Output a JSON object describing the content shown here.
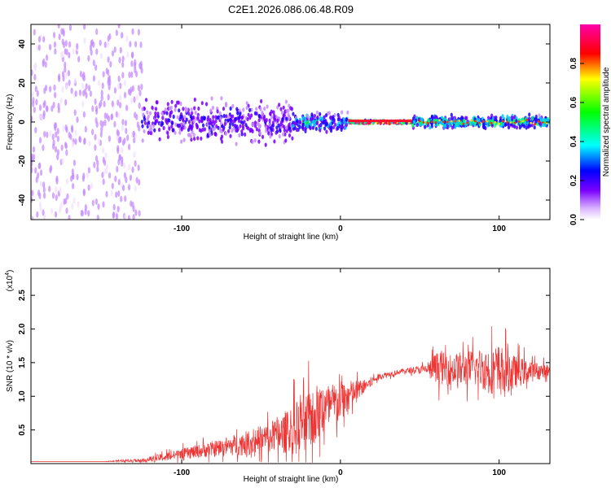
{
  "title": "C2E1.2026.086.06.48.R09",
  "chart_data": [
    {
      "type": "heatmap",
      "name": "spectrogram",
      "xlabel": "Height of straight line (km)",
      "ylabel": "Frequency (Hz)",
      "xlim": [
        -195,
        132
      ],
      "ylim": [
        -50,
        50
      ],
      "xticks": [
        -100,
        0,
        100
      ],
      "yticks": [
        -40,
        -20,
        0,
        20,
        40
      ],
      "colorbar": {
        "label": "Normalized spectral amplitude",
        "range": [
          0,
          1
        ],
        "ticks": [
          0.0,
          0.2,
          0.4,
          0.6,
          0.8
        ],
        "tick_labels": [
          "0.0",
          "0.2",
          "0.4",
          "0.6",
          "0.8"
        ],
        "colormap": [
          "#ffffff",
          "#7a00ff",
          "#0000ff",
          "#00ffff",
          "#00ff00",
          "#ffff00",
          "#ff0000",
          "#ff00aa"
        ]
      },
      "description_regions": [
        {
          "x_range": [
            -195,
            -125
          ],
          "freq_spread": 50,
          "level": 0.12
        },
        {
          "x_range": [
            -125,
            -30
          ],
          "freq_spread": 14,
          "level": 0.25
        },
        {
          "x_range": [
            -30,
            5
          ],
          "freq_spread": 6,
          "level": 0.4
        },
        {
          "x_range": [
            5,
            45
          ],
          "freq_spread": 1,
          "level": 0.9
        },
        {
          "x_range": [
            45,
            132
          ],
          "freq_spread": 4,
          "level": 0.5
        }
      ]
    },
    {
      "type": "line",
      "name": "snr",
      "xlabel": "Height of straight line (km)",
      "ylabel": "SNR (10 * v/v)",
      "y_multiplier_label": "(x10",
      "y_multiplier_exp": "4",
      "xlim": [
        -195,
        132
      ],
      "ylim": [
        0.0,
        2.9
      ],
      "xticks": [
        -100,
        0,
        100
      ],
      "yticks": [
        0.5,
        1.0,
        1.5,
        2.0,
        2.5
      ],
      "ytick_labels": [
        "0.5",
        "1.0",
        "1.5",
        "2.0",
        "2.5"
      ],
      "color": "#ee3333",
      "series": [
        {
          "name": "SNR",
          "x": [
            -195,
            -150,
            -125,
            -110,
            -100,
            -80,
            -60,
            -40,
            -25,
            -15,
            -5,
            5,
            15,
            25,
            40,
            55,
            60,
            70,
            85,
            95,
            100,
            110,
            120,
            132
          ],
          "y": [
            0.03,
            0.03,
            0.05,
            0.1,
            0.14,
            0.22,
            0.3,
            0.42,
            0.55,
            0.75,
            0.85,
            1.0,
            1.15,
            1.3,
            1.38,
            1.4,
            1.42,
            1.4,
            1.42,
            1.4,
            1.38,
            1.36,
            1.37,
            1.38
          ],
          "spread": [
            0.0,
            0.0,
            0.04,
            0.08,
            0.1,
            0.15,
            0.22,
            0.32,
            0.55,
            0.55,
            0.45,
            0.3,
            0.12,
            0.06,
            0.04,
            0.1,
            0.3,
            0.3,
            0.35,
            0.45,
            0.5,
            0.3,
            0.2,
            0.1
          ]
        }
      ]
    }
  ]
}
